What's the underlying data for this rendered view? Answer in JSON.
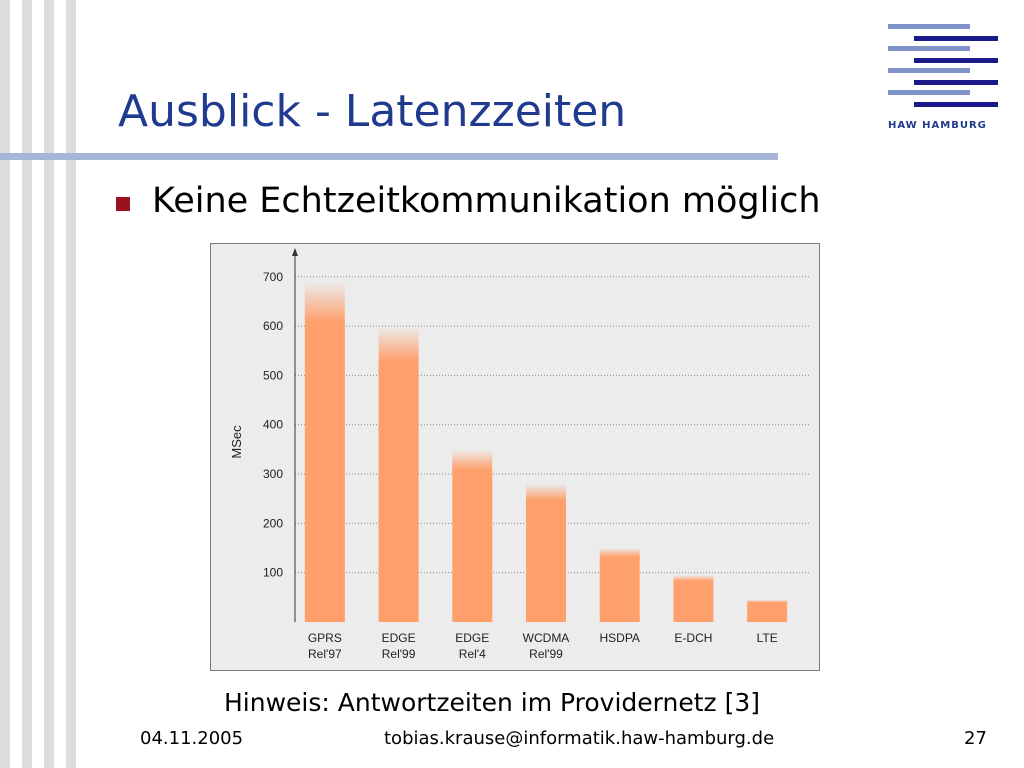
{
  "slide": {
    "title": "Ausblick - Latenzzeiten",
    "bullet": "Keine Echtzeitkommunikation möglich",
    "hint": "Hinweis: Antwortzeiten im Providernetz [3]",
    "footer": {
      "date": "04.11.2005",
      "email": "tobias.krause@informatik.haw-hamburg.de",
      "page": "27"
    },
    "logo_text": "HAW HAMBURG"
  },
  "colors": {
    "title": "#1f3a8f",
    "bullet": "#9b111e",
    "bar": "#ff9f6b",
    "logo_dark": "#1a1a8c",
    "logo_light": "#7f93c9"
  },
  "chart_data": {
    "type": "bar",
    "categories": [
      [
        "GPRS",
        "Rel'97"
      ],
      [
        "EDGE",
        "Rel'99"
      ],
      [
        "EDGE",
        "Rel'4"
      ],
      [
        "WCDMA",
        "Rel'99"
      ],
      [
        "HSDPA"
      ],
      [
        "E-DCH"
      ],
      [
        "LTE"
      ]
    ],
    "values": [
      690,
      600,
      350,
      280,
      150,
      95,
      45
    ],
    "ylabel": "MSec",
    "yticks": [
      100,
      200,
      300,
      400,
      500,
      600,
      700
    ],
    "ylim": [
      0,
      730
    ],
    "grid": true,
    "grid_style": "dotted"
  }
}
